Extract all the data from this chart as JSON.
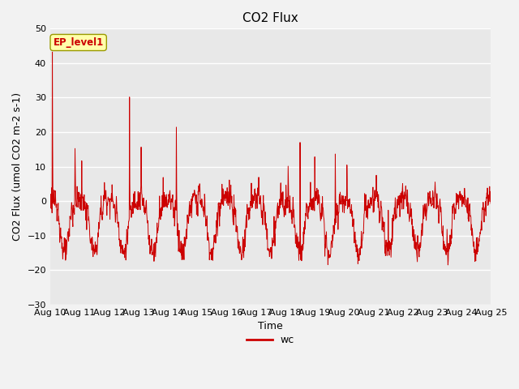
{
  "title": "CO2 Flux",
  "xlabel": "Time",
  "ylabel": "CO2 Flux (umol CO2 m-2 s-1)",
  "ylim": [
    -30,
    50
  ],
  "xlim_start": 10,
  "xlim_end": 25,
  "xtick_labels": [
    "Aug 10",
    "Aug 11",
    "Aug 12",
    "Aug 13",
    "Aug 14",
    "Aug 15",
    "Aug 16",
    "Aug 17",
    "Aug 18",
    "Aug 19",
    "Aug 20",
    "Aug 21",
    "Aug 22",
    "Aug 23",
    "Aug 24",
    "Aug 25"
  ],
  "line_color": "#cc0000",
  "line_label": "wc",
  "fig_bg_color": "#f2f2f2",
  "plot_bg_color": "#e8e8e8",
  "annotation_text": "EP_level1",
  "annotation_bg": "#ffffaa",
  "annotation_border": "#999900",
  "title_fontsize": 11,
  "label_fontsize": 9,
  "tick_fontsize": 8,
  "legend_fontsize": 9
}
